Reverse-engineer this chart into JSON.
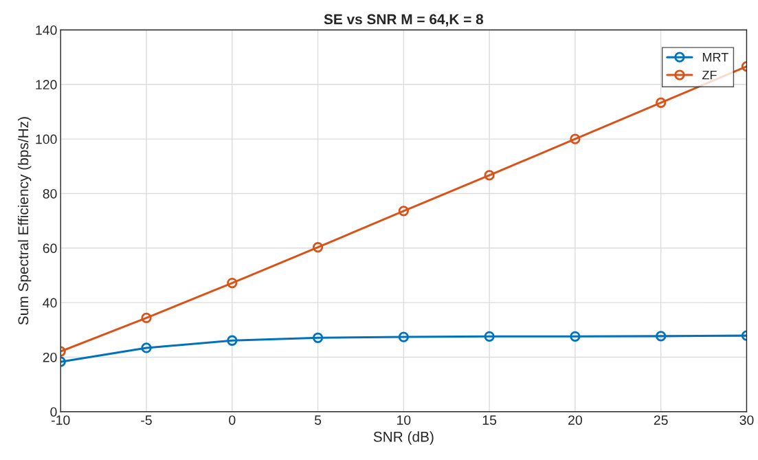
{
  "chart_data": {
    "type": "line",
    "title": "SE vs SNR M = 64,K = 8",
    "xlabel": "SNR (dB)",
    "ylabel": "Sum Spectral Efficiency (bps/Hz)",
    "x": [
      -10,
      -5,
      0,
      5,
      10,
      15,
      20,
      25,
      30
    ],
    "series": [
      {
        "name": "MRT",
        "color": "#0072bd",
        "values": [
          18.3,
          23.4,
          26.1,
          27.1,
          27.4,
          27.6,
          27.6,
          27.7,
          27.9
        ]
      },
      {
        "name": "ZF",
        "color": "#d95319",
        "values": [
          22.1,
          34.4,
          47.2,
          60.3,
          73.6,
          86.7,
          100,
          113.3,
          126.6
        ]
      }
    ],
    "xlim": [
      -10,
      30
    ],
    "xticks": [
      -10,
      -5,
      0,
      5,
      10,
      15,
      20,
      25,
      30
    ],
    "ylim": [
      0,
      140
    ],
    "yticks": [
      0,
      20,
      40,
      60,
      80,
      100,
      120,
      140
    ],
    "grid": true,
    "legend": "top right",
    "marker": "circle",
    "line_style": "solid"
  }
}
